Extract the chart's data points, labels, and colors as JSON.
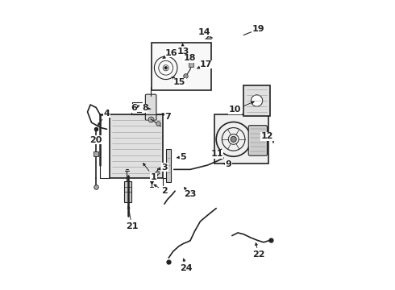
{
  "bg_color": "#ffffff",
  "dark": "#222222",
  "gray": "#888888",
  "font_size": 8,
  "label_font_weight": "bold",
  "lw_thin": 0.8,
  "lw_med": 1.2,
  "lw_thick": 1.8
}
